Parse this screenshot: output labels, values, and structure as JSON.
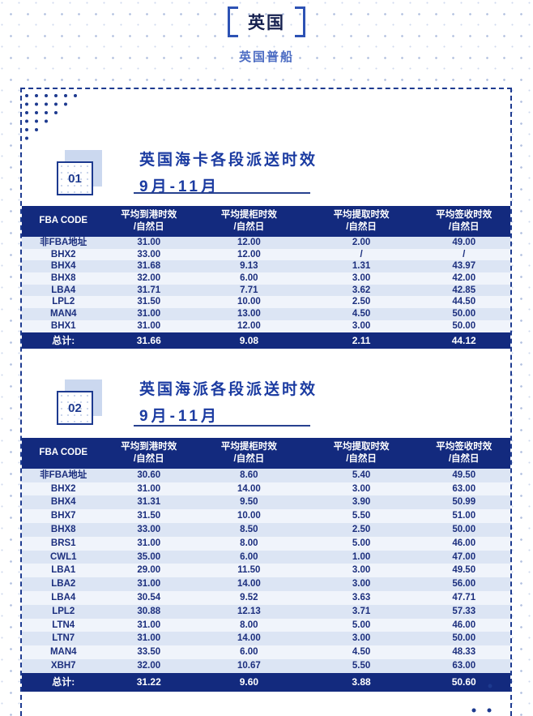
{
  "page": {
    "title": "英国",
    "subtitle": "英国普船"
  },
  "colors": {
    "navy": "#132a7e",
    "accent_border": "#1e3b90",
    "title_blue": "#1b3ba1",
    "subtitle_blue": "#4d6dc3",
    "row_alt": "#dce5f4",
    "row_light": "#f0f4fb"
  },
  "sections": [
    {
      "number": "01",
      "title": "英国海卡各段派送时效",
      "period": "9月-11月"
    },
    {
      "number": "02",
      "title": "英国海派各段派送时效",
      "period": "9月-11月"
    }
  ],
  "tables": [
    {
      "headers": [
        {
          "label": "FBA CODE",
          "sub": ""
        },
        {
          "label": "平均到港时效",
          "sub": "/自然日"
        },
        {
          "label": "平均提柜时效",
          "sub": "/自然日"
        },
        {
          "label": "平均提取时效",
          "sub": "/自然日"
        },
        {
          "label": "平均签收时效",
          "sub": "/自然日"
        }
      ],
      "rows": [
        [
          "非FBA地址",
          "31.00",
          "12.00",
          "2.00",
          "49.00"
        ],
        [
          "BHX2",
          "33.00",
          "12.00",
          "/",
          "/"
        ],
        [
          "BHX4",
          "31.68",
          "9.13",
          "1.31",
          "43.97"
        ],
        [
          "BHX8",
          "32.00",
          "6.00",
          "3.00",
          "42.00"
        ],
        [
          "LBA4",
          "31.71",
          "7.71",
          "3.62",
          "42.85"
        ],
        [
          "LPL2",
          "31.50",
          "10.00",
          "2.50",
          "44.50"
        ],
        [
          "MAN4",
          "31.00",
          "13.00",
          "4.50",
          "50.00"
        ],
        [
          "BHX1",
          "31.00",
          "12.00",
          "3.00",
          "50.00"
        ]
      ],
      "total": [
        "总计:",
        "31.66",
        "9.08",
        "2.11",
        "44.12"
      ]
    },
    {
      "headers": [
        {
          "label": "FBA CODE",
          "sub": ""
        },
        {
          "label": "平均到港时效",
          "sub": "/自然日"
        },
        {
          "label": "平均提柜时效",
          "sub": "/自然日"
        },
        {
          "label": "平均提取时效",
          "sub": "/自然日"
        },
        {
          "label": "平均签收时效",
          "sub": "/自然日"
        }
      ],
      "rows": [
        [
          "非FBA地址",
          "30.60",
          "8.60",
          "5.40",
          "49.50"
        ],
        [
          "BHX2",
          "31.00",
          "14.00",
          "3.00",
          "63.00"
        ],
        [
          "BHX4",
          "31.31",
          "9.50",
          "3.90",
          "50.99"
        ],
        [
          "BHX7",
          "31.50",
          "10.00",
          "5.50",
          "51.00"
        ],
        [
          "BHX8",
          "33.00",
          "8.50",
          "2.50",
          "50.00"
        ],
        [
          "BRS1",
          "31.00",
          "8.00",
          "5.00",
          "46.00"
        ],
        [
          "CWL1",
          "35.00",
          "6.00",
          "1.00",
          "47.00"
        ],
        [
          "LBA1",
          "29.00",
          "11.50",
          "3.00",
          "49.50"
        ],
        [
          "LBA2",
          "31.00",
          "14.00",
          "3.00",
          "56.00"
        ],
        [
          "LBA4",
          "30.54",
          "9.52",
          "3.63",
          "47.71"
        ],
        [
          "LPL2",
          "30.88",
          "12.13",
          "3.71",
          "57.33"
        ],
        [
          "LTN4",
          "31.00",
          "8.00",
          "5.00",
          "46.00"
        ],
        [
          "LTN7",
          "31.00",
          "14.00",
          "3.00",
          "50.00"
        ],
        [
          "MAN4",
          "33.50",
          "6.00",
          "4.50",
          "48.33"
        ],
        [
          "XBH7",
          "32.00",
          "10.67",
          "5.50",
          "63.00"
        ]
      ],
      "total": [
        "总计:",
        "31.22",
        "9.60",
        "3.88",
        "50.60"
      ]
    }
  ]
}
